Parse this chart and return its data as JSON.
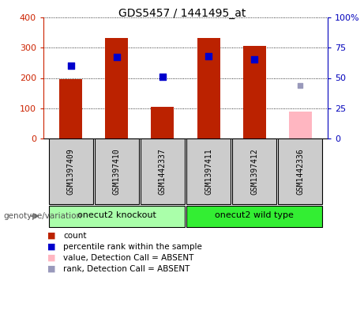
{
  "title": "GDS5457 / 1441495_at",
  "samples": [
    "GSM1397409",
    "GSM1397410",
    "GSM1442337",
    "GSM1397411",
    "GSM1397412",
    "GSM1442336"
  ],
  "bar_values": [
    195,
    333,
    105,
    333,
    305,
    null
  ],
  "absent_bar_value": 90,
  "absent_bar_color": "#ffb6c1",
  "rank_vals_pct": [
    60,
    67.5,
    51.25,
    68,
    65.5
  ],
  "absent_rank_pct": 43.75,
  "absent_rank_color": "#9999bb",
  "bar_color": "#bb2200",
  "rank_color": "#0000cc",
  "ylim_left": [
    0,
    400
  ],
  "ylim_right": [
    0,
    100
  ],
  "yticks_left": [
    0,
    100,
    200,
    300,
    400
  ],
  "yticks_right": [
    0,
    25,
    50,
    75,
    100
  ],
  "yticklabels_left": [
    "0",
    "100",
    "200",
    "300",
    "400"
  ],
  "yticklabels_right": [
    "0",
    "25",
    "50",
    "75",
    "100%"
  ],
  "left_axis_color": "#cc2200",
  "right_axis_color": "#0000bb",
  "group1_label": "onecut2 knockout",
  "group2_label": "onecut2 wild type",
  "group1_color": "#aaffaa",
  "group2_color": "#33ee33",
  "legend_items": [
    {
      "color": "#bb2200",
      "label": "count"
    },
    {
      "color": "#0000cc",
      "label": "percentile rank within the sample"
    },
    {
      "color": "#ffb6c1",
      "label": "value, Detection Call = ABSENT"
    },
    {
      "color": "#9999bb",
      "label": "rank, Detection Call = ABSENT"
    }
  ],
  "bar_width": 0.5,
  "sample_box_color": "#cccccc",
  "genotype_label": "genotype/variation"
}
